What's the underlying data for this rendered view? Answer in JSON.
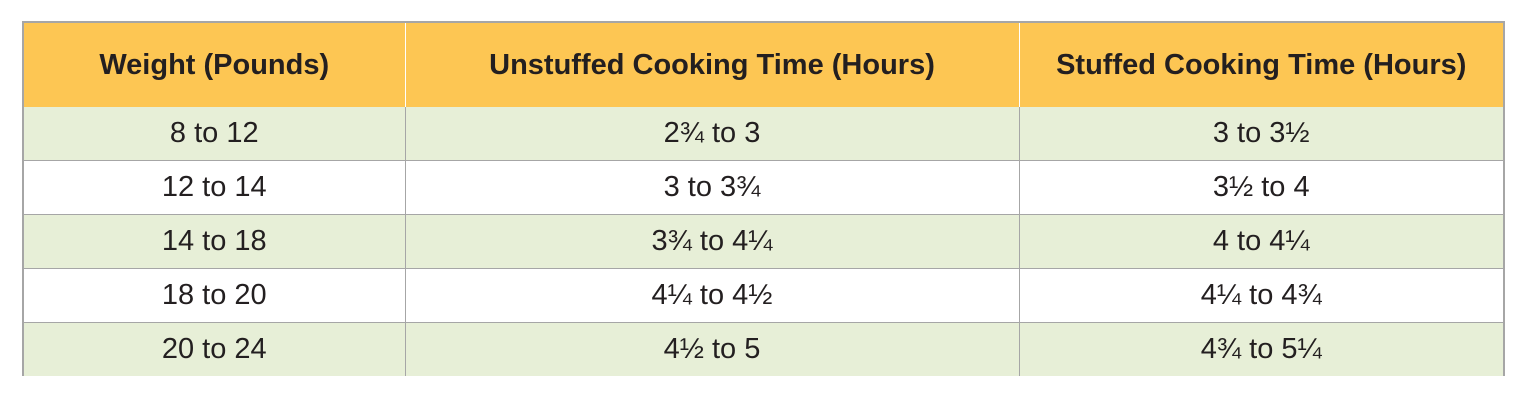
{
  "table": {
    "headers": [
      "Weight (Pounds)",
      "Unstuffed Cooking Time (Hours)",
      "Stuffed Cooking Time (Hours)"
    ],
    "rows": [
      [
        "8 to 12",
        "2¾ to 3",
        "3 to 3½"
      ],
      [
        "12 to 14",
        "3 to 3¾",
        "3½ to 4"
      ],
      [
        "14 to 18",
        "3¾ to 4¼",
        "4 to 4¼"
      ],
      [
        "18 to 20",
        "4¼ to 4½",
        "4¼ to 4¾"
      ],
      [
        "20 to 24",
        "4½ to 5",
        "4¾ to 5¼"
      ]
    ]
  },
  "colors": {
    "header_bg": "#fdc653",
    "shaded_row_bg": "#e7efd7",
    "plain_row_bg": "#ffffff",
    "border": "#a6a6a6",
    "text": "#231f20"
  }
}
